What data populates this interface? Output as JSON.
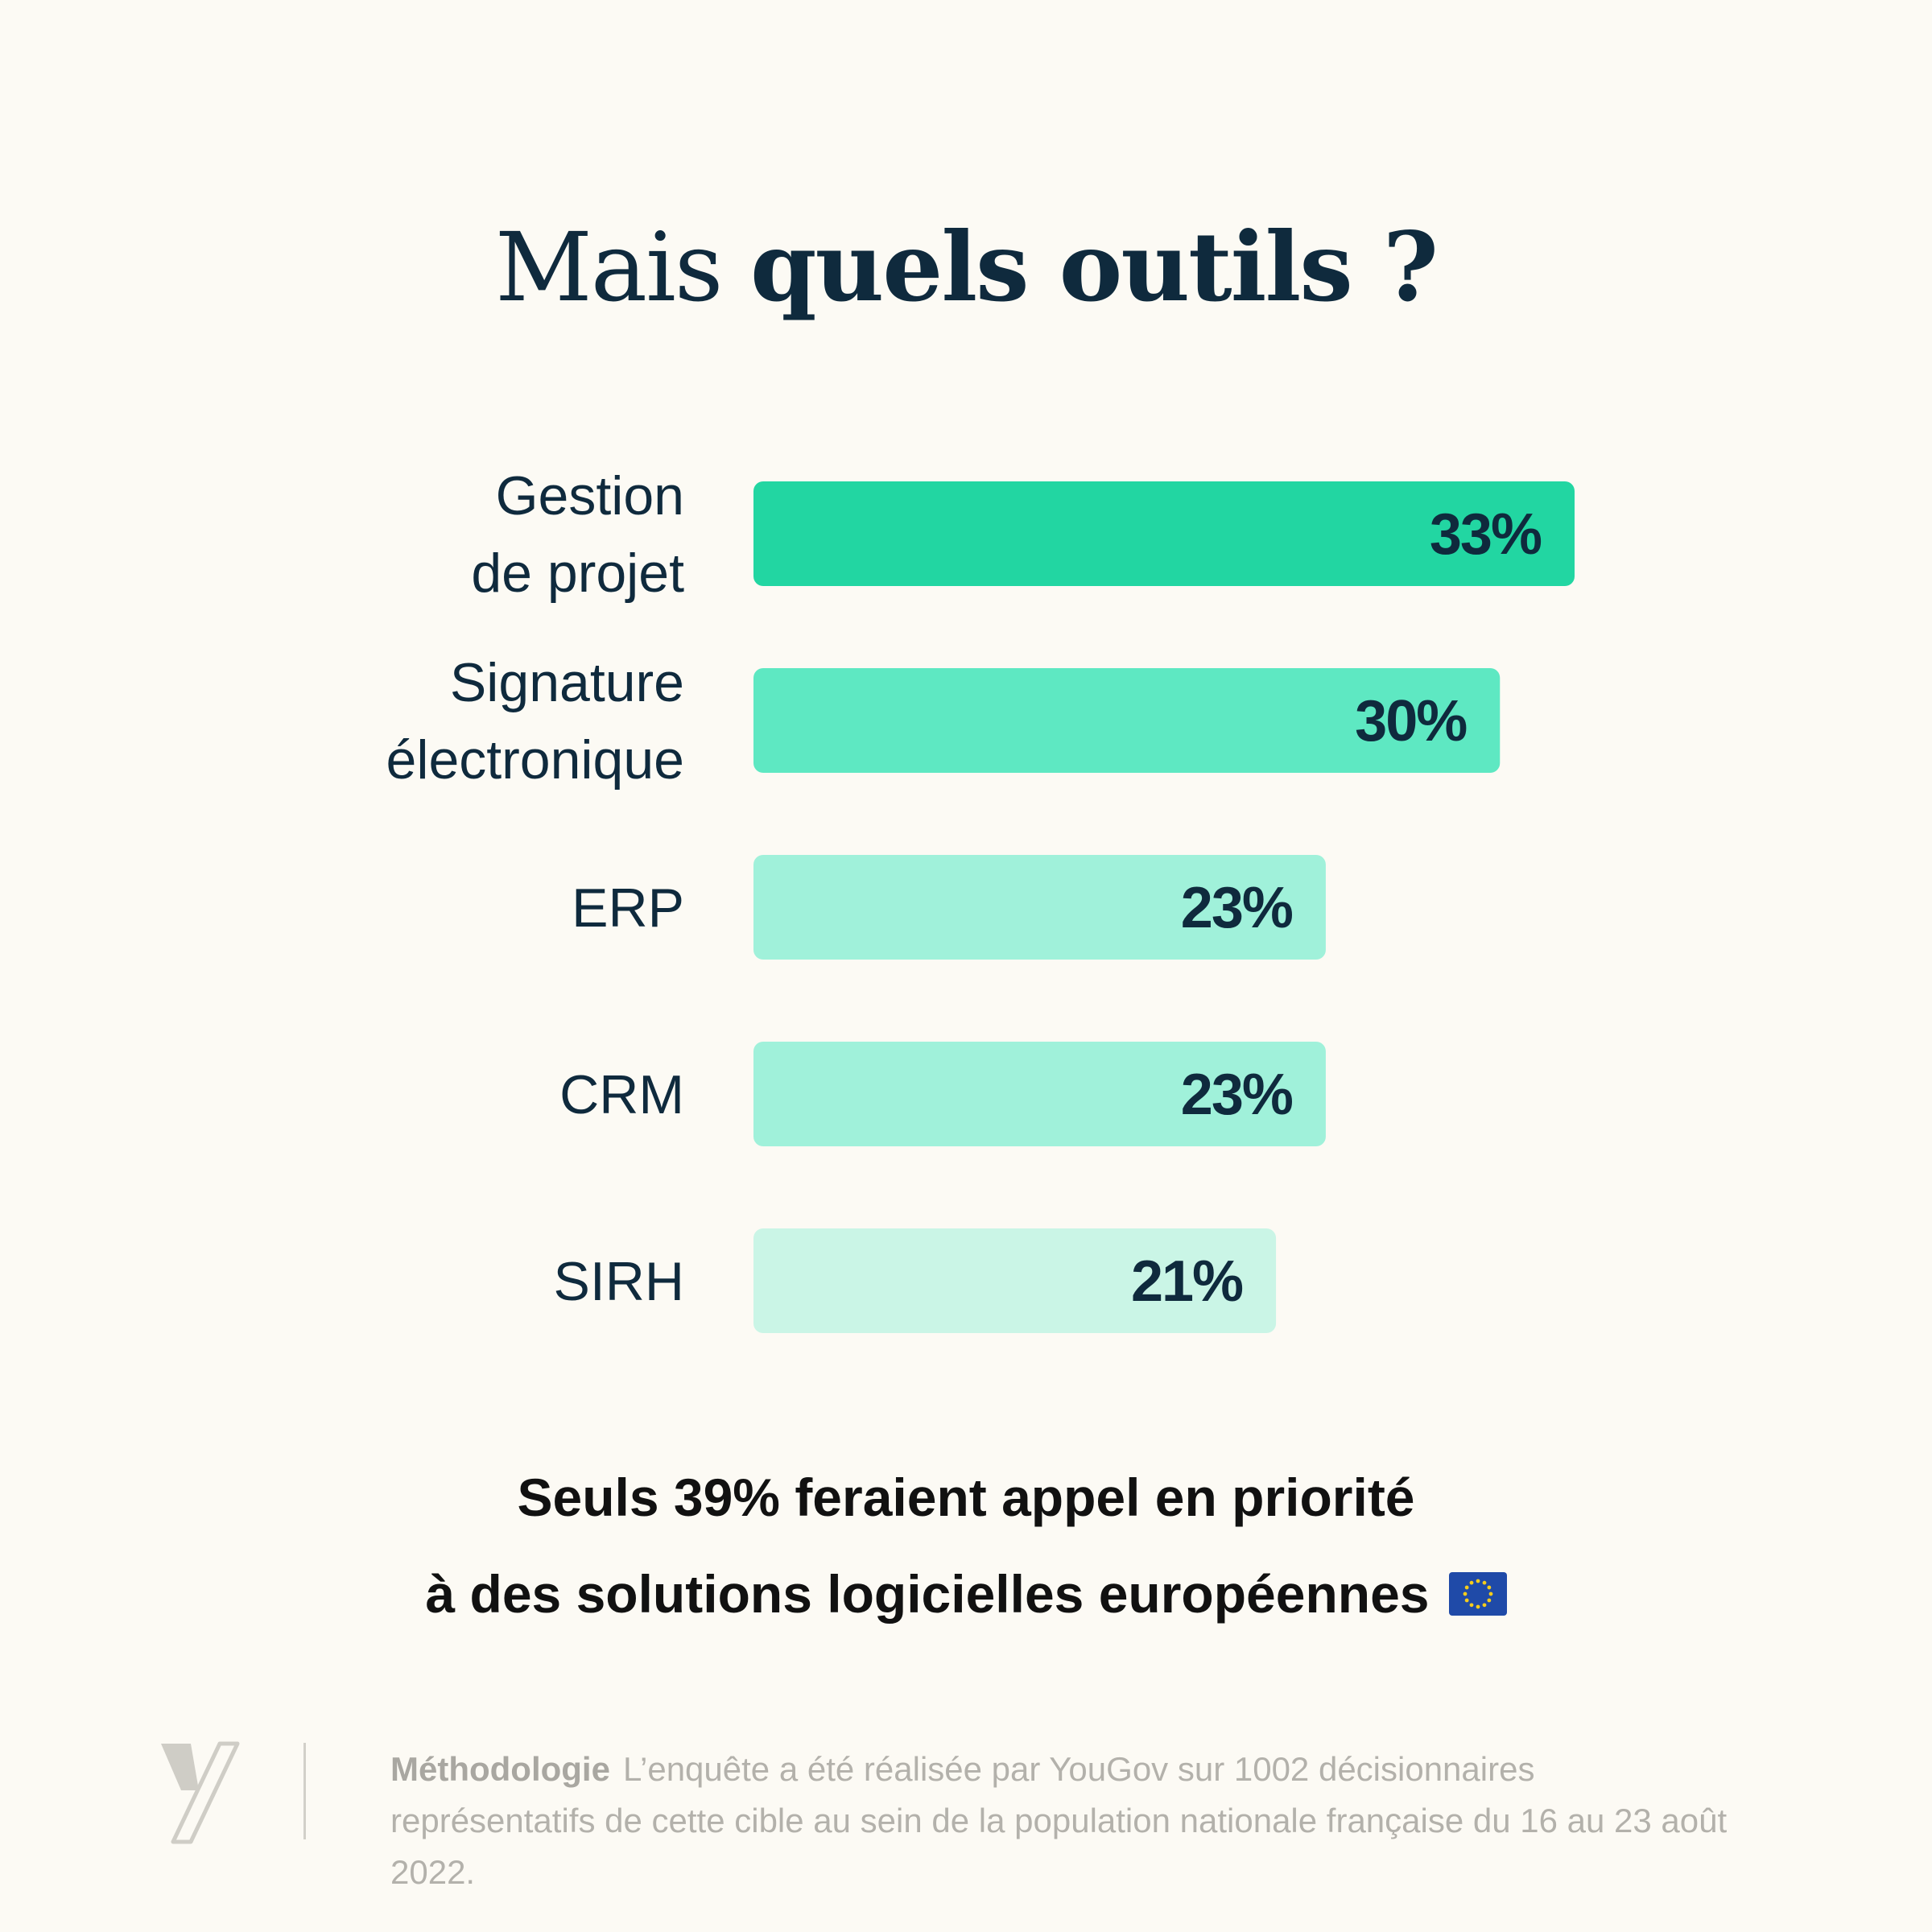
{
  "title": {
    "light": "Mais",
    "bold": "quels outils ?"
  },
  "chart_data": {
    "type": "bar",
    "orientation": "horizontal",
    "categories": [
      [
        "Gestion",
        "de projet"
      ],
      [
        "Signature",
        "électronique"
      ],
      [
        "ERP"
      ],
      [
        "CRM"
      ],
      [
        "SIRH"
      ]
    ],
    "values": [
      33,
      30,
      23,
      23,
      21
    ],
    "value_labels": [
      "33%",
      "30%",
      "23%",
      "23%",
      "21%"
    ],
    "colors": [
      "#22d6a2",
      "#5ee8c2",
      "#a0f1da",
      "#a0f1da",
      "#caf5e6"
    ],
    "xlim": [
      0,
      33
    ],
    "unit": "%",
    "grid": false,
    "legend": "none"
  },
  "conclusion": {
    "line1": "Seuls 39% feraient appel en priorité",
    "line2": "à des solutions logicielles européennes",
    "flag_icon": "eu-flag-icon"
  },
  "footer": {
    "methodology_title": "Méthodologie",
    "methodology_text": "L’enquête a été réalisée par YouGov sur 1002 décisionnaires représentatifs de cette cible au sein de la population nationale française du 16 au 23 août 2022.",
    "logo_icon": "brand-logo-icon"
  },
  "colors": {
    "background": "#fcfaf4",
    "text_dark": "#0f2a3d",
    "muted": "#b3b1ab"
  }
}
